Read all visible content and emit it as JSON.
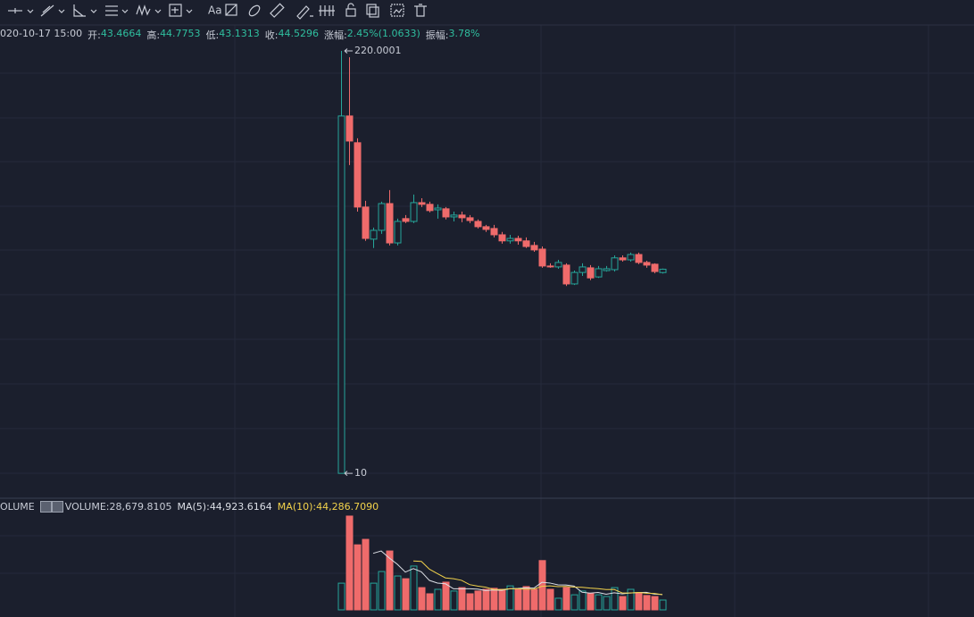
{
  "toolbar": {
    "text_button": "Aa"
  },
  "chart_data": [
    {
      "type": "candlestick",
      "header": {
        "date": "020-10-17 15:00",
        "open_label": "开:",
        "high_label": "高:",
        "low_label": "低:",
        "close_label": "收:",
        "change_label": "涨幅:",
        "change": "2.45%(1.0633)",
        "amplitude_label": "振幅:",
        "amplitude": "3.78%"
      },
      "open": [
        10,
        136.7,
        112.4,
        70.2,
        55.5,
        59.2,
        72.0,
        54.0,
        64.5,
        63.2,
        72.5,
        71.6,
        68.8,
        69.3,
        65.3,
        66.2,
        64.9,
        63.2,
        60.8,
        60.0,
        57.3,
        54.8,
        55.8,
        54.8,
        53.0,
        51.6,
        45.6,
        45.3,
        45.9,
        40.0,
        43.5,
        45.0,
        42.1,
        44.1,
        44.4,
        48.4,
        47.7,
        49.6,
        46.8,
        46.2,
        43.4664
      ],
      "high": [
        220.0001,
        210,
        116.1,
        73.5,
        60.4,
        73.0,
        79.5,
        64.5,
        66.2,
        76.9,
        74.9,
        73.0,
        71.6,
        70.2,
        67.9,
        67.9,
        66.2,
        64.1,
        61.6,
        61.6,
        58.5,
        57.3,
        56.9,
        56.2,
        54.4,
        52.6,
        46.5,
        47.7,
        46.5,
        44.1,
        46.5,
        45.9,
        45.6,
        45.6,
        49.3,
        49.3,
        50.3,
        50.3,
        47.4,
        46.5,
        44.7753
      ],
      "low": [
        10,
        95.4,
        67.9,
        54.8,
        52.0,
        57.7,
        53.0,
        53.0,
        62.4,
        62.4,
        70.2,
        67.5,
        64.5,
        64.1,
        63.2,
        62.8,
        62.4,
        60.0,
        58.5,
        56.2,
        53.7,
        53.7,
        53.3,
        52.0,
        50.6,
        45.0,
        45.0,
        44.7,
        39.4,
        39.7,
        42.4,
        41.1,
        41.8,
        43.8,
        43.8,
        47.1,
        47.1,
        46.2,
        45.0,
        43.2,
        43.1313
      ],
      "close": [
        136.7,
        113.8,
        70.2,
        55.8,
        59.2,
        72.0,
        54.0,
        63.2,
        63.2,
        72.5,
        71.6,
        68.4,
        69.7,
        65.3,
        66.2,
        64.9,
        63.6,
        60.8,
        59.6,
        57.3,
        54.8,
        55.8,
        54.8,
        52.6,
        51.3,
        45.6,
        45.3,
        46.8,
        40.0,
        43.5,
        45.3,
        41.8,
        44.7,
        44.7,
        48.4,
        47.7,
        49.6,
        46.8,
        45.9,
        43.8,
        44.5296
      ],
      "ylim": [
        8.5,
        266
      ],
      "ylog": true,
      "up_color": "#26a69a",
      "down_color": "#ef6b6b",
      "value_color": "#2fbf9f"
    },
    {
      "type": "bar",
      "title": "OLUME",
      "series": [
        {
          "name": "VOLUME:",
          "color": "#c8ccd6",
          "values": [
            78000,
            274000,
            190000,
            206000,
            78000,
            112000,
            172000,
            99000,
            91000,
            128000,
            65000,
            47000,
            60000,
            81000,
            55000,
            65000,
            47000,
            55000,
            60000,
            63000,
            60000,
            70000,
            60000,
            68000,
            60000,
            144000,
            60000,
            34000,
            65000,
            44000,
            55000,
            47000,
            44000,
            39000,
            65000,
            39000,
            60000,
            50000,
            42000,
            39000,
            28679.8105
          ],
          "value_labels": [
            null,
            null,
            null,
            null,
            null,
            null,
            null,
            null,
            null,
            null,
            null,
            null,
            null,
            null,
            null,
            null,
            null,
            null,
            null,
            null,
            null,
            null,
            null,
            null,
            null,
            null,
            null,
            null,
            null,
            null,
            null,
            null,
            null,
            null,
            null,
            null,
            null,
            null,
            null,
            null,
            "28,679.8105"
          ]
        },
        {
          "name": "MA(5):",
          "color": "#dcdfe6",
          "type": "line",
          "values": [
            null,
            null,
            null,
            null,
            165200,
            172000,
            151600,
            133400,
            110400,
            120400,
            111000,
            86000,
            78200,
            76200,
            61600,
            61600,
            61600,
            60600,
            56400,
            58000,
            57000,
            61600,
            62600,
            64200,
            63600,
            80400,
            78400,
            73200,
            72600,
            69400,
            51600,
            49000,
            51000,
            45800,
            50000,
            46800,
            49400,
            50600,
            51200,
            46000,
            44923.6164
          ],
          "value_labels": [
            null,
            null,
            null,
            null,
            null,
            null,
            null,
            null,
            null,
            null,
            null,
            null,
            null,
            null,
            null,
            null,
            null,
            null,
            null,
            null,
            null,
            null,
            null,
            null,
            null,
            null,
            null,
            null,
            null,
            null,
            null,
            null,
            null,
            null,
            null,
            null,
            null,
            null,
            null,
            null,
            "44,923.6164"
          ]
        },
        {
          "name": "MA(10):",
          "color": "#f2d24b",
          "type": "line",
          "values": [
            null,
            null,
            null,
            null,
            null,
            null,
            null,
            null,
            null,
            142800,
            141500,
            118800,
            105800,
            93300,
            91000,
            86300,
            73800,
            69400,
            66300,
            59800,
            59300,
            61600,
            61600,
            60300,
            60800,
            68700,
            70000,
            67900,
            68400,
            66500,
            66000,
            63700,
            62100,
            59200,
            59700,
            49200,
            49200,
            50800,
            48500,
            48000,
            44286.709
          ],
          "value_labels": [
            null,
            null,
            null,
            null,
            null,
            null,
            null,
            null,
            null,
            null,
            null,
            null,
            null,
            null,
            null,
            null,
            null,
            null,
            null,
            null,
            null,
            null,
            null,
            null,
            null,
            null,
            null,
            null,
            null,
            null,
            null,
            null,
            null,
            null,
            null,
            null,
            null,
            null,
            null,
            null,
            "44,286.7090"
          ]
        }
      ],
      "ylim": [
        0,
        300000
      ]
    }
  ]
}
